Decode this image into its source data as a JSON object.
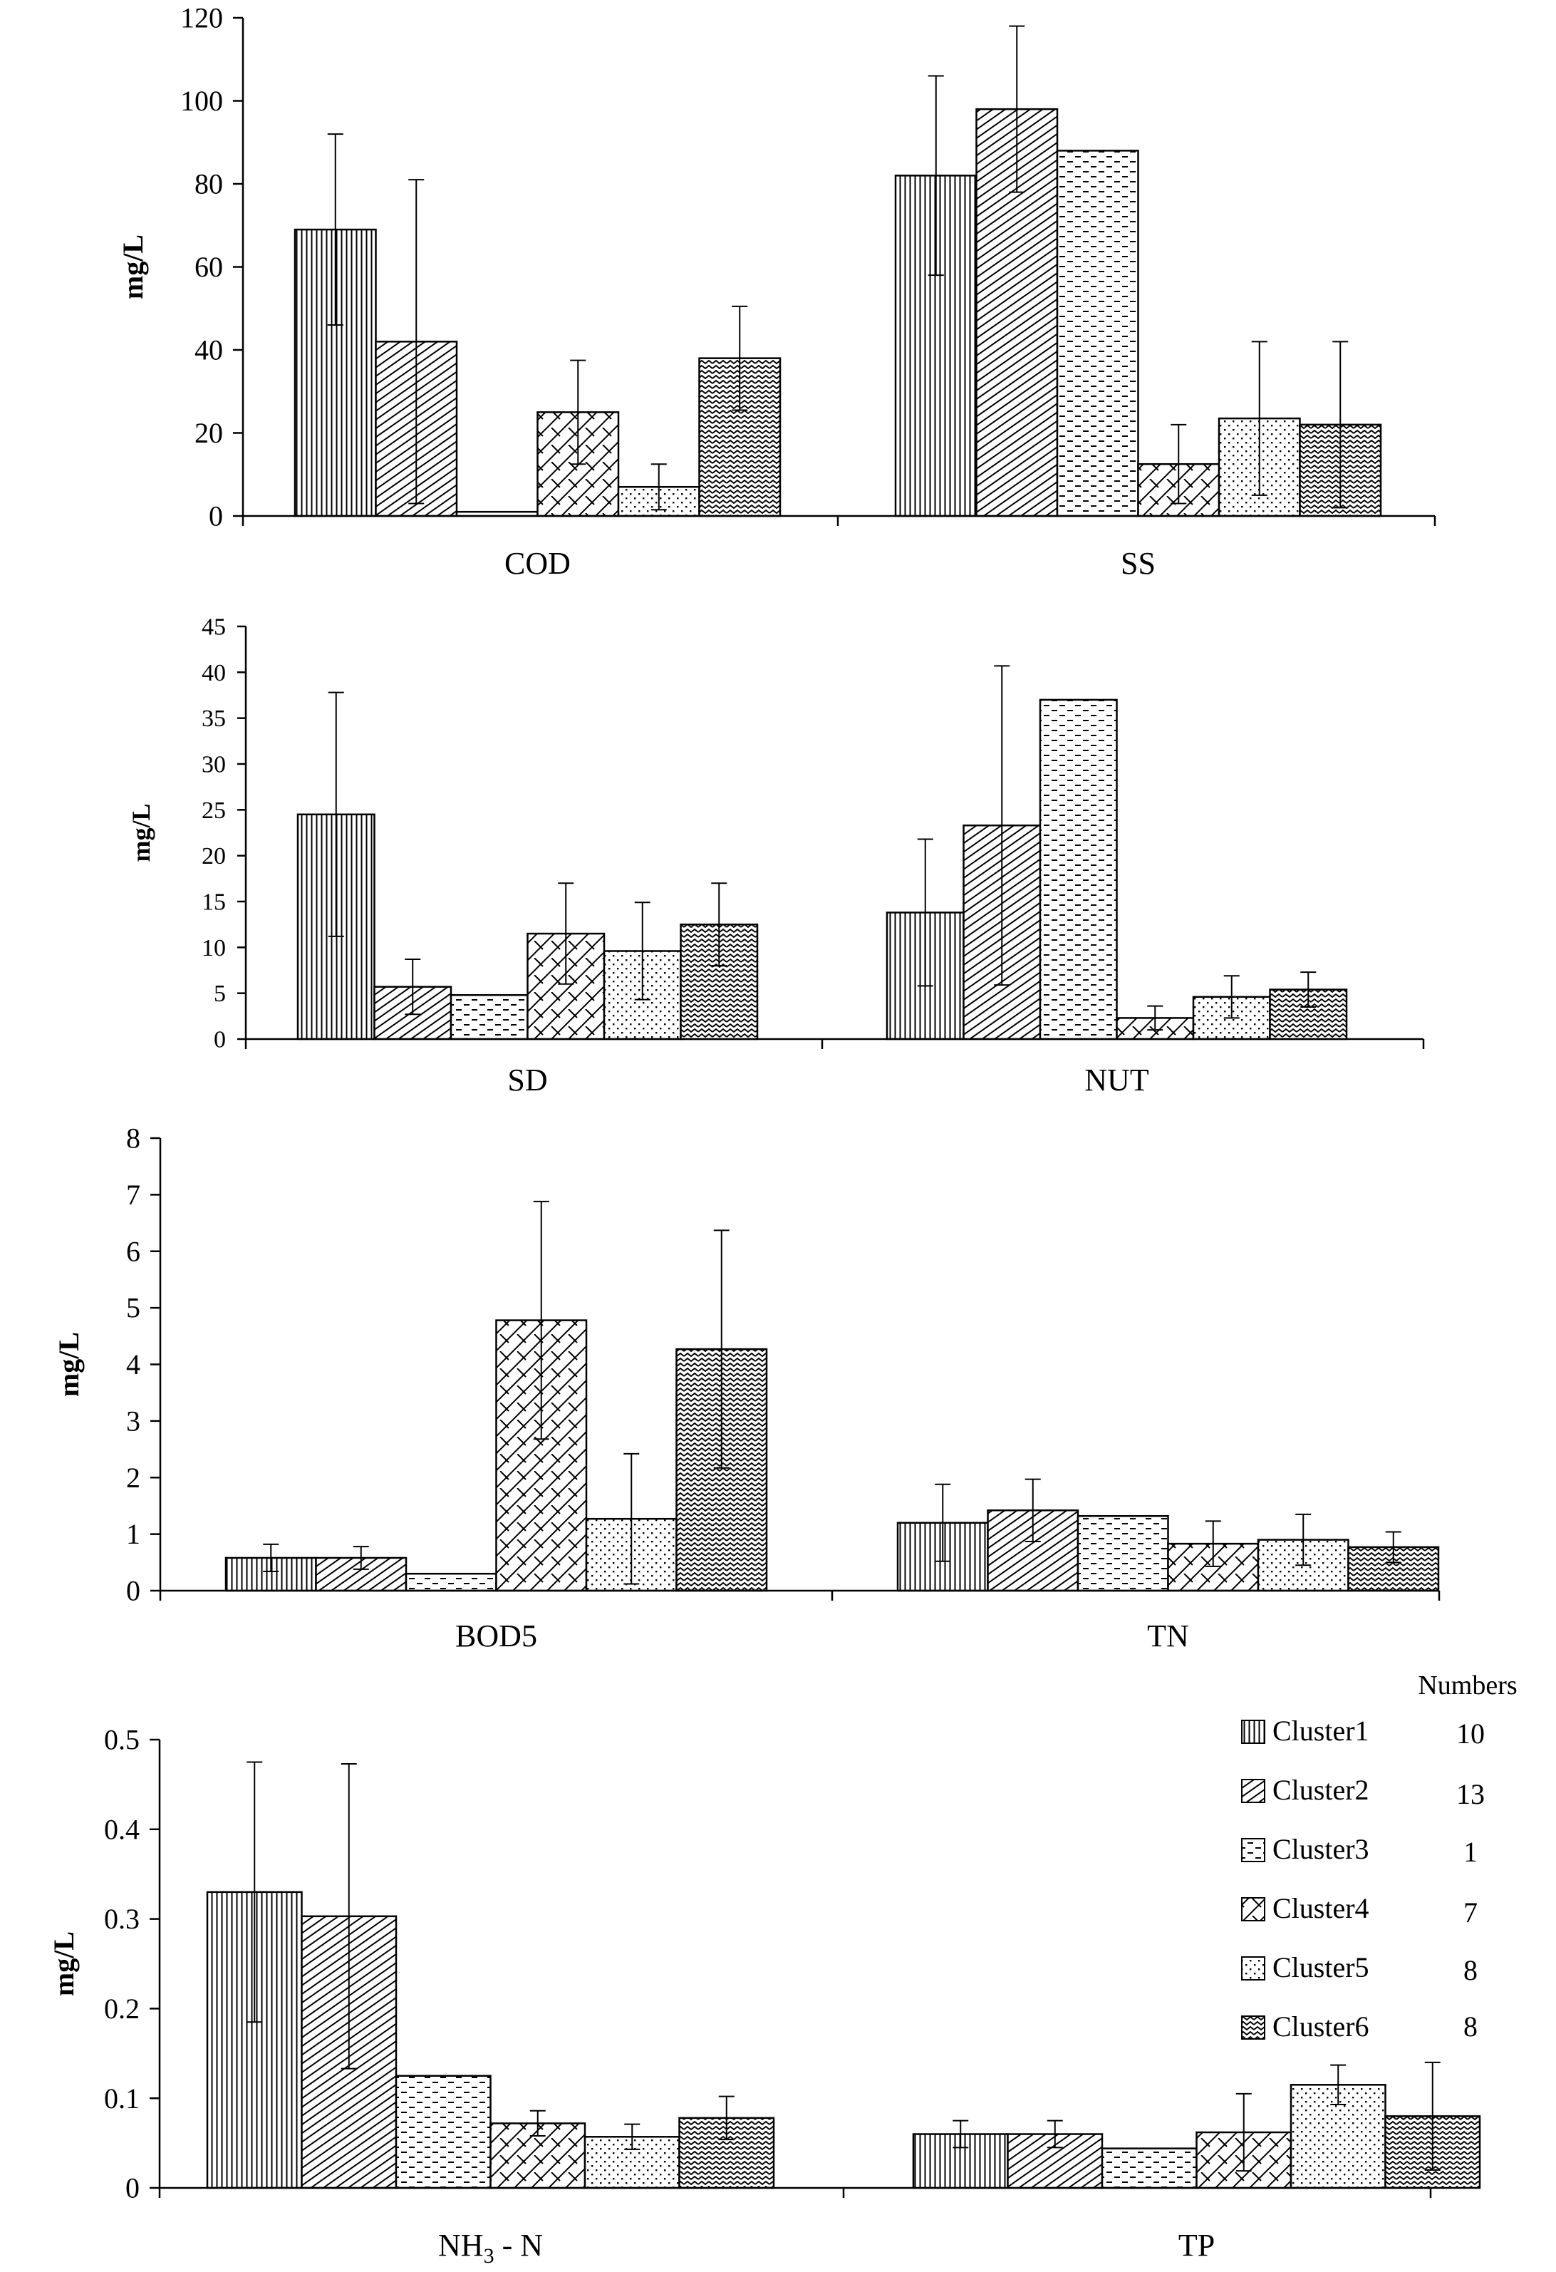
{
  "legend": {
    "header": "Numbers",
    "entries": [
      {
        "name": "Cluster1",
        "count": "10"
      },
      {
        "name": "Cluster2",
        "count": "13"
      },
      {
        "name": "Cluster3",
        "count": "1"
      },
      {
        "name": "Cluster4",
        "count": "7"
      },
      {
        "name": "Cluster5",
        "count": "8"
      },
      {
        "name": "Cluster6",
        "count": "8"
      }
    ]
  },
  "chart_data": [
    {
      "type": "bar",
      "ylabel": "mg/L",
      "ylim": [
        0,
        120
      ],
      "yticks": [
        "0",
        "20",
        "40",
        "60",
        "80",
        "100",
        "120"
      ],
      "categories": [
        "COD",
        "SS"
      ],
      "series": [
        {
          "name": "Cluster1",
          "values": [
            69,
            82
          ],
          "errors": [
            23,
            24
          ]
        },
        {
          "name": "Cluster2",
          "values": [
            42,
            98
          ],
          "errors": [
            39,
            20
          ]
        },
        {
          "name": "Cluster3",
          "values": [
            1,
            88
          ],
          "errors": [
            null,
            null
          ]
        },
        {
          "name": "Cluster4",
          "values": [
            25,
            12.5
          ],
          "errors": [
            12.5,
            9.5
          ]
        },
        {
          "name": "Cluster5",
          "values": [
            7,
            23.5
          ],
          "errors": [
            5.5,
            18.5
          ]
        },
        {
          "name": "Cluster6",
          "values": [
            38,
            22
          ],
          "errors": [
            12.5,
            20
          ]
        }
      ]
    },
    {
      "type": "bar",
      "ylabel": "mg/L",
      "ylim": [
        0,
        45
      ],
      "yticks": [
        "0",
        "5",
        "10",
        "15",
        "20",
        "25",
        "30",
        "35",
        "40",
        "45"
      ],
      "categories": [
        "SD",
        "NUT"
      ],
      "series": [
        {
          "name": "Cluster1",
          "values": [
            24.5,
            13.8
          ],
          "errors": [
            13.3,
            8
          ]
        },
        {
          "name": "Cluster2",
          "values": [
            5.7,
            23.3
          ],
          "errors": [
            3,
            17.4
          ]
        },
        {
          "name": "Cluster3",
          "values": [
            4.8,
            37
          ],
          "errors": [
            null,
            null
          ]
        },
        {
          "name": "Cluster4",
          "values": [
            11.5,
            2.3
          ],
          "errors": [
            5.5,
            1.3
          ]
        },
        {
          "name": "Cluster5",
          "values": [
            9.6,
            4.6
          ],
          "errors": [
            5.3,
            2.3
          ]
        },
        {
          "name": "Cluster6",
          "values": [
            12.5,
            5.4
          ],
          "errors": [
            4.5,
            1.9
          ]
        }
      ]
    },
    {
      "type": "bar",
      "ylabel": "mg/L",
      "ylim": [
        0,
        8
      ],
      "yticks": [
        "0",
        "1",
        "2",
        "3",
        "4",
        "5",
        "6",
        "7",
        "8"
      ],
      "categories": [
        "BOD5",
        "TN"
      ],
      "series": [
        {
          "name": "Cluster1",
          "values": [
            0.58,
            1.2
          ],
          "errors": [
            0.24,
            0.68
          ]
        },
        {
          "name": "Cluster2",
          "values": [
            0.58,
            1.42
          ],
          "errors": [
            0.2,
            0.55
          ]
        },
        {
          "name": "Cluster3",
          "values": [
            0.3,
            1.32
          ],
          "errors": [
            null,
            null
          ]
        },
        {
          "name": "Cluster4",
          "values": [
            4.78,
            0.83
          ],
          "errors": [
            2.1,
            0.4
          ]
        },
        {
          "name": "Cluster5",
          "values": [
            1.27,
            0.9
          ],
          "errors": [
            1.15,
            0.45
          ]
        },
        {
          "name": "Cluster6",
          "values": [
            4.27,
            0.77
          ],
          "errors": [
            2.1,
            0.27
          ]
        }
      ]
    },
    {
      "type": "bar",
      "ylabel": "mg/L",
      "ylim": [
        0,
        0.5
      ],
      "yticks": [
        "0",
        "0.1",
        "0.2",
        "0.3",
        "0.4",
        "0.5"
      ],
      "categories": [
        "NH",
        "TP"
      ],
      "category_subscript": [
        "3",
        ""
      ],
      "category_suffix": [
        " - N",
        ""
      ],
      "series": [
        {
          "name": "Cluster1",
          "values": [
            0.33,
            0.06
          ],
          "errors": [
            0.145,
            0.015
          ]
        },
        {
          "name": "Cluster2",
          "values": [
            0.303,
            0.06
          ],
          "errors": [
            0.17,
            0.015
          ]
        },
        {
          "name": "Cluster3",
          "values": [
            0.125,
            0.044
          ],
          "errors": [
            null,
            null
          ]
        },
        {
          "name": "Cluster4",
          "values": [
            0.072,
            0.062
          ],
          "errors": [
            0.014,
            0.043
          ]
        },
        {
          "name": "Cluster5",
          "values": [
            0.057,
            0.115
          ],
          "errors": [
            0.014,
            0.022
          ]
        },
        {
          "name": "Cluster6",
          "values": [
            0.078,
            0.08
          ],
          "errors": [
            0.024,
            0.06
          ]
        }
      ]
    }
  ]
}
